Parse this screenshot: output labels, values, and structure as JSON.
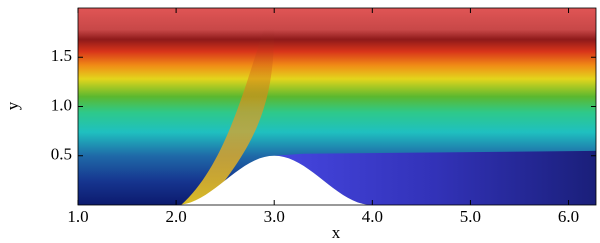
{
  "chart_data": {
    "type": "field",
    "x_label": "x",
    "y_label": "y",
    "xlim": [
      1.0,
      6.28
    ],
    "ylim": [
      0,
      2.0
    ],
    "xticks": [
      {
        "value": 1,
        "label": "1.0"
      },
      {
        "value": 2,
        "label": "2.0"
      },
      {
        "value": 3,
        "label": "3.0"
      },
      {
        "value": 4,
        "label": "4.0"
      },
      {
        "value": 5,
        "label": "5.0"
      },
      {
        "value": 6,
        "label": "6.0"
      }
    ],
    "yticks": [
      0.5,
      {
        "value": 1,
        "label": "1.0"
      },
      1.5
    ]
  }
}
